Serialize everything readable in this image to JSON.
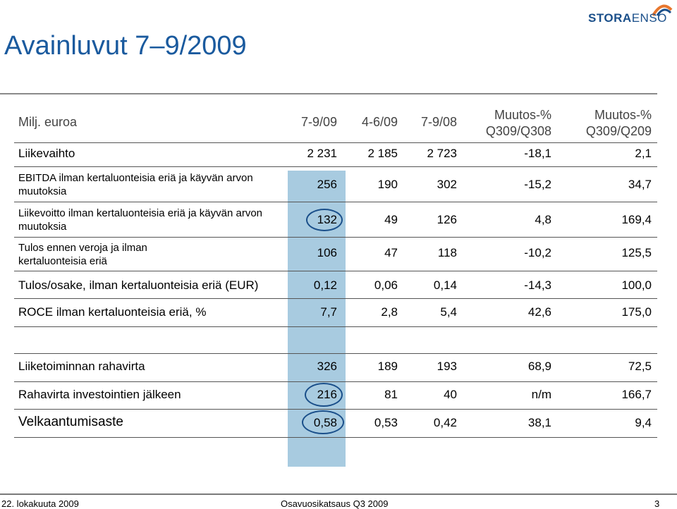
{
  "slide": {
    "title": "Avainluvut 7–9/2009",
    "logo_text_bold": "STORA",
    "logo_text_light": "ENSO"
  },
  "table": {
    "headers": {
      "label": "Milj. euroa",
      "c1": "7-9/09",
      "c2": "4-6/09",
      "c3": "7-9/08",
      "c4_line1": "Muutos-%",
      "c4_line2": "Q309/Q308",
      "c5_line1": "Muutos-%",
      "c5_line2": "Q309/Q209"
    },
    "rows": [
      {
        "label": "Liikevaihto",
        "c1": "2 231",
        "c2": "2 185",
        "c3": "2 723",
        "c4": "-18,1",
        "c5": "2,1"
      },
      {
        "label": "EBITDA ilman kertaluonteisia eriä ja käyvän arvon muutoksia",
        "c1": "256",
        "c2": "190",
        "c3": "302",
        "c4": "-15,2",
        "c5": "34,7"
      },
      {
        "label": "Liikevoitto ilman kertaluonteisia eriä ja käyvän arvon muutoksia",
        "c1": "132",
        "c2": "49",
        "c3": "126",
        "c4": "4,8",
        "c5": "169,4"
      },
      {
        "label": "Tulos ennen veroja ja ilman kertaluonteisia eriä",
        "c1": "106",
        "c2": "47",
        "c3": "118",
        "c4": "-10,2",
        "c5": "125,5"
      },
      {
        "label": "Tulos/osake, ilman kertaluonteisia eriä (EUR)",
        "c1": "0,12",
        "c2": "0,06",
        "c3": "0,14",
        "c4": "-14,3",
        "c5": "100,0"
      },
      {
        "label": "ROCE ilman kertaluonteisia eriä, %",
        "c1": "7,7",
        "c2": "2,8",
        "c3": "5,4",
        "c4": "42,6",
        "c5": "175,0"
      },
      {
        "label": "Liiketoiminnan rahavirta",
        "c1": "326",
        "c2": "189",
        "c3": "193",
        "c4": "68,9",
        "c5": "72,5"
      },
      {
        "label": "Rahavirta investointien jälkeen",
        "c1": "216",
        "c2": "81",
        "c3": "40",
        "c4": "n/m",
        "c5": "166,7"
      },
      {
        "label": "Velkaantumisaste",
        "c1": "0,58",
        "c2": "0,53",
        "c3": "0,42",
        "c4": "38,1",
        "c5": "9,4"
      }
    ]
  },
  "footer": {
    "date": "22. lokakuuta 2009",
    "center": "Osavuosikatsaus Q3 2009",
    "page": "3"
  },
  "colors": {
    "title": "#1a5a9e",
    "highlight_column": "#a8cbe0",
    "circle": "#1a4f8a"
  }
}
